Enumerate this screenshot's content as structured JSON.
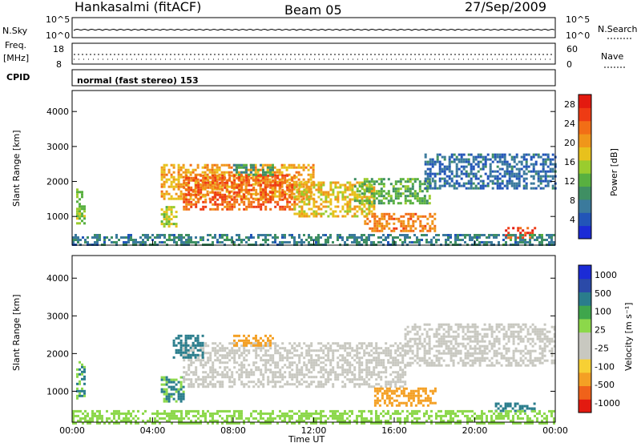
{
  "header": {
    "station": "Hankasalmi (fitACF)",
    "beam": "Beam 05",
    "date": "27/Sep/2009"
  },
  "strip_labels": {
    "nsky": "N.Sky",
    "nsky_ticks": [
      "10^5",
      "10^0"
    ],
    "nsearch": "N.Search",
    "nsearch_ticks": [
      "10^5",
      "10^0"
    ],
    "freq_top": "Freq.",
    "freq_unit": "[MHz]",
    "freq_ticks": [
      "18",
      "8"
    ],
    "nave": "Nave",
    "nave_ticks": [
      "60",
      "0"
    ],
    "cpid": "CPID",
    "mode": "normal (fast stereo) 153"
  },
  "colors": {
    "power": [
      "#1b2bd6",
      "#2255b8",
      "#3b7a9c",
      "#3f8f63",
      "#58b040",
      "#9acc2e",
      "#e8c11c",
      "#f0961a",
      "#f26e16",
      "#ee3b14",
      "#e31a10"
    ],
    "velocity": [
      "#e31a10",
      "#f0621a",
      "#f4a024",
      "#f7d034",
      "#c8c8c0",
      "#c8c8c0",
      "#8cd84a",
      "#3fa64c",
      "#2a7d8c",
      "#2b4aa8",
      "#1b2bd6"
    ],
    "velocity_gray": "#c8c8c0"
  },
  "chart_data": [
    {
      "type": "heatmap",
      "name_panel": "power",
      "title": "",
      "xlabel": "Time UT",
      "ylabel": "Slant Range [km]",
      "x_ticks": [
        "00:00",
        "04:00",
        "08:00",
        "12:00",
        "16:00",
        "20:00",
        "00:00"
      ],
      "y_ticks": [
        "1000",
        "2000",
        "3000",
        "4000"
      ],
      "xlim": [
        0,
        24
      ],
      "ylim": [
        180,
        4600
      ],
      "colorbar_label": "Power [dB]",
      "colorbar_ticks": [
        "4",
        "8",
        "12",
        "16",
        "20",
        "24",
        "28"
      ],
      "colorbar_range": [
        0,
        30
      ],
      "regions": [
        {
          "x0": 0.2,
          "x1": 0.6,
          "y0": 800,
          "y1": 1800,
          "value": 14
        },
        {
          "x0": 4.4,
          "x1": 5.2,
          "y0": 700,
          "y1": 1300,
          "value": 16
        },
        {
          "x0": 4.4,
          "x1": 12.0,
          "y0": 1500,
          "y1": 2500,
          "value": 20
        },
        {
          "x0": 5.5,
          "x1": 11.0,
          "y0": 1200,
          "y1": 2200,
          "value": 24
        },
        {
          "x0": 8.0,
          "x1": 10.0,
          "y0": 2200,
          "y1": 2500,
          "value": 10
        },
        {
          "x0": 11.0,
          "x1": 15.0,
          "y0": 1000,
          "y1": 2000,
          "value": 18
        },
        {
          "x0": 14.0,
          "x1": 17.8,
          "y0": 1400,
          "y1": 2100,
          "value": 12
        },
        {
          "x0": 17.5,
          "x1": 24.0,
          "y0": 1800,
          "y1": 2800,
          "value": 6
        },
        {
          "x0": 14.5,
          "x1": 18.0,
          "y0": 600,
          "y1": 1100,
          "value": 22
        },
        {
          "x0": 21.5,
          "x1": 23.0,
          "y0": 400,
          "y1": 700,
          "value": 26
        },
        {
          "x0": 0.0,
          "x1": 24.0,
          "y0": 180,
          "y1": 500,
          "value": 8
        }
      ]
    },
    {
      "type": "heatmap",
      "name_panel": "velocity",
      "title": "",
      "xlabel": "Time UT",
      "ylabel": "Slant Range [km]",
      "x_ticks": [
        "00:00",
        "04:00",
        "08:00",
        "12:00",
        "16:00",
        "20:00",
        "00:00"
      ],
      "y_ticks": [
        "1000",
        "2000",
        "3000",
        "4000"
      ],
      "xlim": [
        0,
        24
      ],
      "ylim": [
        180,
        4600
      ],
      "colorbar_label": "Velocity [m s⁻¹]",
      "colorbar_ticks": [
        "1000",
        "500",
        "100",
        "25",
        "-25",
        "-100",
        "-500",
        "-1000"
      ],
      "regions": [
        {
          "x0": 0.2,
          "x1": 0.6,
          "y0": 800,
          "y1": 1800,
          "value": 100
        },
        {
          "x0": 4.4,
          "x1": 5.5,
          "y0": 700,
          "y1": 1400,
          "value": 100
        },
        {
          "x0": 5.5,
          "x1": 16.5,
          "y0": 1100,
          "y1": 2300,
          "value": 0
        },
        {
          "x0": 5.0,
          "x1": 6.5,
          "y0": 1900,
          "y1": 2500,
          "value": 300
        },
        {
          "x0": 8.0,
          "x1": 10.0,
          "y0": 2200,
          "y1": 2500,
          "value": -400
        },
        {
          "x0": 16.5,
          "x1": 24.0,
          "y0": 1700,
          "y1": 2800,
          "value": 0
        },
        {
          "x0": 15.0,
          "x1": 18.0,
          "y0": 600,
          "y1": 1100,
          "value": -150
        },
        {
          "x0": 21.0,
          "x1": 23.0,
          "y0": 500,
          "y1": 700,
          "value": 150
        },
        {
          "x0": 0.0,
          "x1": 24.0,
          "y0": 180,
          "y1": 500,
          "value": 60
        }
      ]
    }
  ]
}
